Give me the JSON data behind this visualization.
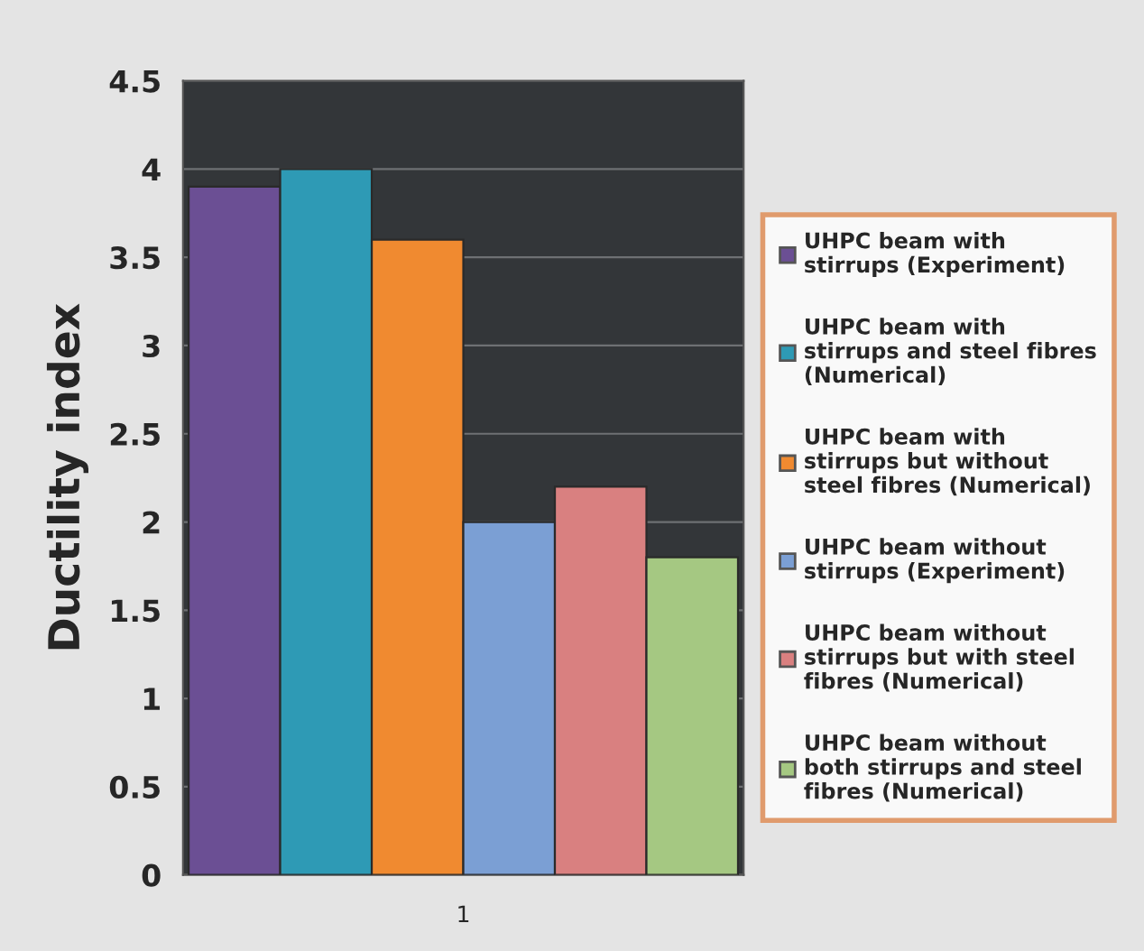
{
  "chart_data": {
    "type": "bar",
    "ylabel": "Ductility index",
    "categories": [
      "1"
    ],
    "series": [
      {
        "name": "UHPC beam with\nstirrups (Experiment)",
        "color": "#6b4f94",
        "values": [
          3.9
        ]
      },
      {
        "name": "UHPC beam with\nstirrups and steel fibres\n(Numerical)",
        "color": "#2e9ab5",
        "values": [
          4.0
        ]
      },
      {
        "name": "UHPC beam with\nstirrups but without\nsteel fibres (Numerical)",
        "color": "#f08a30",
        "values": [
          3.6
        ]
      },
      {
        "name": "UHPC beam without\nstirrups (Experiment)",
        "color": "#7b9fd4",
        "values": [
          2.0
        ]
      },
      {
        "name": "UHPC beam without\nstirrups but with steel\nfibres (Numerical)",
        "color": "#d98080",
        "values": [
          2.2
        ]
      },
      {
        "name": "UHPC beam without\nboth stirrups and steel\nfibres (Numerical)",
        "color": "#a5c882",
        "values": [
          1.8
        ]
      }
    ],
    "ylim": [
      0,
      4.5
    ],
    "yticks": [
      0,
      0.5,
      1,
      1.5,
      2,
      2.5,
      3,
      3.5,
      4,
      4.5
    ],
    "grid": "y",
    "legend": "right"
  }
}
